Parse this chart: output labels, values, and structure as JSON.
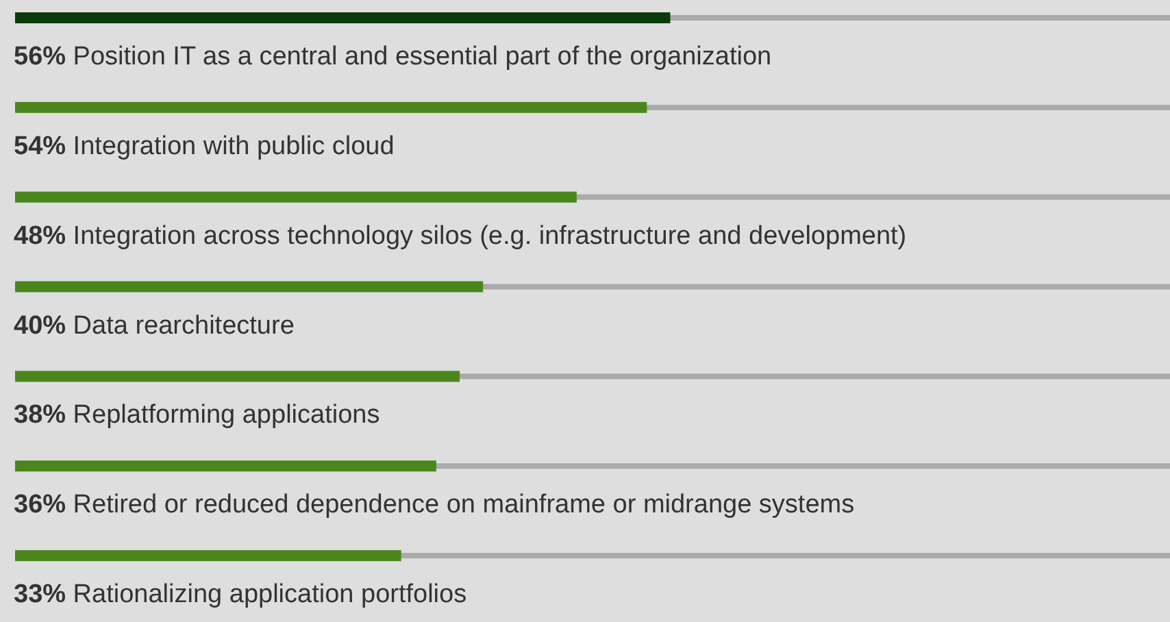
{
  "chart_data": {
    "type": "bar",
    "orientation": "horizontal",
    "categories": [
      "Position IT as a central and essential part of the organization",
      "Integration with public cloud",
      "Integration across technology silos (e.g. infrastructure and development)",
      "Data rearchitecture",
      "Replatforming applications",
      "Retired or reduced dependence on mainframe or midrange systems",
      "Rationalizing application portfolios"
    ],
    "values": [
      56,
      54,
      48,
      40,
      38,
      36,
      33
    ],
    "value_labels": [
      "56%",
      "54%",
      "48%",
      "40%",
      "38%",
      "36%",
      "33%"
    ],
    "colors": [
      "#0b3a0b",
      "#4a861c",
      "#4a861c",
      "#4a861c",
      "#4a861c",
      "#4a861c",
      "#4a861c"
    ],
    "xlim": [
      0,
      100
    ],
    "tick_labels": false
  }
}
